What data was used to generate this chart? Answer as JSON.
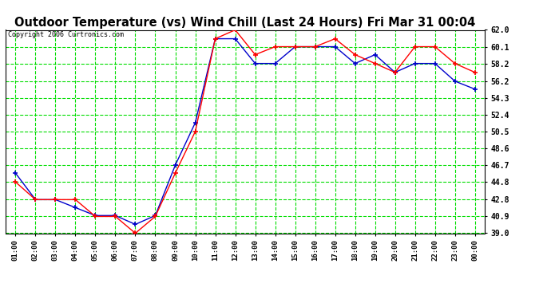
{
  "title": "Outdoor Temperature (vs) Wind Chill (Last 24 Hours) Fri Mar 31 00:04",
  "copyright": "Copyright 2006 Curtronics.com",
  "x_labels": [
    "01:00",
    "02:00",
    "03:00",
    "04:00",
    "05:00",
    "06:00",
    "07:00",
    "08:00",
    "09:00",
    "10:00",
    "11:00",
    "12:00",
    "13:00",
    "14:00",
    "15:00",
    "16:00",
    "17:00",
    "18:00",
    "19:00",
    "20:00",
    "21:00",
    "22:00",
    "23:00",
    "00:00"
  ],
  "temp_values": [
    44.8,
    42.8,
    42.8,
    42.8,
    40.9,
    40.9,
    39.0,
    40.9,
    45.8,
    50.5,
    61.0,
    62.0,
    59.2,
    60.1,
    60.1,
    60.1,
    61.0,
    59.2,
    58.2,
    57.2,
    60.1,
    60.1,
    58.2,
    57.2
  ],
  "wind_chill_values": [
    45.8,
    42.8,
    42.8,
    41.9,
    41.0,
    41.0,
    40.0,
    41.0,
    46.7,
    51.5,
    61.0,
    61.0,
    58.2,
    58.2,
    60.1,
    60.1,
    60.1,
    58.2,
    59.2,
    57.2,
    58.2,
    58.2,
    56.2,
    55.3
  ],
  "temp_color": "#ff0000",
  "wind_chill_color": "#0000cc",
  "bg_color": "#ffffff",
  "plot_bg_color": "#ffffff",
  "grid_color": "#00dd00",
  "title_fontsize": 11,
  "y_min": 39.0,
  "y_max": 62.0,
  "y_ticks": [
    39.0,
    40.9,
    42.8,
    44.8,
    46.7,
    48.6,
    50.5,
    52.4,
    54.3,
    56.2,
    58.2,
    60.1,
    62.0
  ]
}
